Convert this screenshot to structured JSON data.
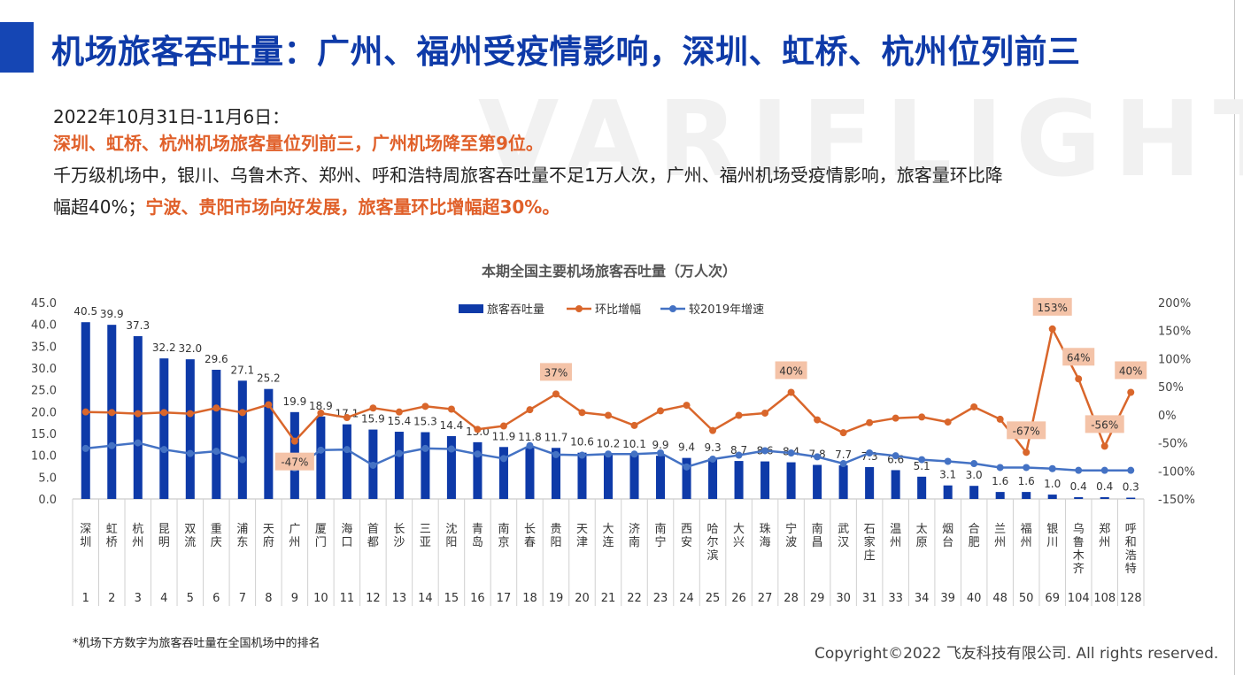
{
  "header": {
    "title": "机场旅客吞吐量：广州、福州受疫情影响，深圳、虹桥、杭州位列前三",
    "watermark": "VARIFLIGHT"
  },
  "summary": {
    "date_line": "2022年10月31日-11月6日：",
    "highlight_line": "深圳、虹桥、杭州机场旅客量位列前三，广州机场降至第9位。",
    "body_line_1": "千万级机场中，银川、乌鲁木齐、郑州、呼和浩特周旅客吞吐量不足1万人次，广州、福州机场受疫情影响，旅客量环比降",
    "body_line_2_prefix": "幅超40%；",
    "body_line_2_highlight": "宁波、贵阳市场向好发展，旅客量环比增幅超30%。"
  },
  "footer": {
    "note": "*机场下方数字为旅客吞吐量在全国机场中的排名",
    "copyright": "Copyright©2022 飞友科技有限公司. All rights reserved."
  },
  "colors": {
    "bar": "#0e3aa8",
    "mom": "#d9662b",
    "yoy": "#4472c4",
    "callout": "#f4c3a8",
    "title": "#0e3aa8",
    "highlight": "#e0602a"
  },
  "chart_data": {
    "type": "bar",
    "title": "本期全国主要机场旅客吞吐量（万人次）",
    "categories": [
      "深圳",
      "虹桥",
      "杭州",
      "昆明",
      "双流",
      "重庆",
      "浦东",
      "天府",
      "广州",
      "厦门",
      "海口",
      "首都",
      "长沙",
      "三亚",
      "沈阳",
      "青岛",
      "南京",
      "长春",
      "贵阳",
      "天津",
      "大连",
      "济南",
      "南宁",
      "西安",
      "哈尔滨",
      "大兴",
      "珠海",
      "宁波",
      "南昌",
      "武汉",
      "石家庄",
      "温州",
      "太原",
      "烟台",
      "合肥",
      "兰州",
      "福州",
      "银川",
      "乌鲁木齐",
      "郑州",
      "呼和浩特"
    ],
    "ranks": [
      "1",
      "2",
      "3",
      "4",
      "5",
      "6",
      "7",
      "8",
      "9",
      "10",
      "11",
      "12",
      "13",
      "14",
      "15",
      "16",
      "17",
      "18",
      "19",
      "20",
      "21",
      "22",
      "23",
      "24",
      "25",
      "26",
      "27",
      "28",
      "29",
      "30",
      "31",
      "33",
      "34",
      "39",
      "40",
      "48",
      "50",
      "69",
      "104",
      "108",
      "128"
    ],
    "series": [
      {
        "name": "旅客吞吐量",
        "axis": "left",
        "kind": "bar",
        "values": [
          40.5,
          39.9,
          37.3,
          32.2,
          32.0,
          29.6,
          27.1,
          25.2,
          19.9,
          18.9,
          17.1,
          15.9,
          15.4,
          15.3,
          14.4,
          13.0,
          11.9,
          11.8,
          11.7,
          10.6,
          10.2,
          10.1,
          9.9,
          9.4,
          9.3,
          8.7,
          8.6,
          8.4,
          7.8,
          7.7,
          7.3,
          6.6,
          5.1,
          3.1,
          3.0,
          1.6,
          1.6,
          1.0,
          0.4,
          0.4,
          0.3
        ],
        "labels": [
          "40.5",
          "39.9",
          "37.3",
          "32.2",
          "32.0",
          "29.6",
          "27.1",
          "25.2",
          "19.9",
          "18.9",
          "17.1",
          "15.9",
          "15.4",
          "15.3",
          "14.4",
          "13.0",
          "11.9",
          "11.8",
          "11.7",
          "10.6",
          "10.2",
          "10.1",
          "9.9",
          "9.4",
          "9.3",
          "8.7",
          "8.6",
          "8.4",
          "7.8",
          "7.7",
          "7.3",
          "6.6",
          "5.1",
          "3.1",
          "3.0",
          "1.6",
          "1.6",
          "1.0",
          "0.4",
          "0.4",
          "0.3"
        ]
      },
      {
        "name": "环比增幅",
        "axis": "right",
        "kind": "line",
        "values": [
          5,
          4,
          2,
          4,
          2,
          12,
          4,
          18,
          -47,
          3,
          -5,
          12,
          5,
          15,
          10,
          -26,
          -20,
          9,
          37,
          4,
          -1,
          -19,
          7,
          17,
          -28,
          -1,
          3,
          40,
          -9,
          -32,
          -14,
          -6,
          -4,
          -13,
          14,
          -8,
          -67,
          153,
          64,
          -56,
          40
        ]
      },
      {
        "name": "较2019年增速",
        "axis": "right",
        "kind": "line",
        "values": [
          -60,
          -55,
          -50,
          -62,
          -69,
          -65,
          -80,
          null,
          -95,
          -63,
          -62,
          -90,
          -69,
          -60,
          -61,
          -70,
          -78,
          -55,
          -71,
          -72,
          -70,
          -70,
          -68,
          -93,
          -79,
          -72,
          -64,
          -68,
          -75,
          -87,
          -68,
          -73,
          -80,
          -83,
          -87,
          -94,
          -94,
          -96,
          -99,
          -99,
          -99
        ]
      }
    ],
    "callouts": [
      {
        "series": "环比增幅",
        "index": 8,
        "text": "-47%"
      },
      {
        "series": "环比增幅",
        "index": 18,
        "text": "37%"
      },
      {
        "series": "环比增幅",
        "index": 27,
        "text": "40%"
      },
      {
        "series": "环比增幅",
        "index": 36,
        "text": "-67%"
      },
      {
        "series": "环比增幅",
        "index": 37,
        "text": "153%"
      },
      {
        "series": "环比增幅",
        "index": 38,
        "text": "64%"
      },
      {
        "series": "环比增幅",
        "index": 39,
        "text": "-56%"
      },
      {
        "series": "环比增幅",
        "index": 40,
        "text": "40%"
      }
    ],
    "y_left": {
      "min": 0,
      "max": 45,
      "step": 5,
      "ticks": [
        "0.0",
        "5.0",
        "10.0",
        "15.0",
        "20.0",
        "25.0",
        "30.0",
        "35.0",
        "40.0",
        "45.0"
      ]
    },
    "y_right": {
      "min": -150,
      "max": 200,
      "step": 50,
      "ticks": [
        "-150%",
        "-100%",
        "-50%",
        "0%",
        "50%",
        "100%",
        "150%",
        "200%"
      ]
    },
    "legend": {
      "position": "top-center",
      "entries": [
        "旅客吞吐量",
        "环比增幅",
        "较2019年增速"
      ]
    },
    "grid": false
  }
}
